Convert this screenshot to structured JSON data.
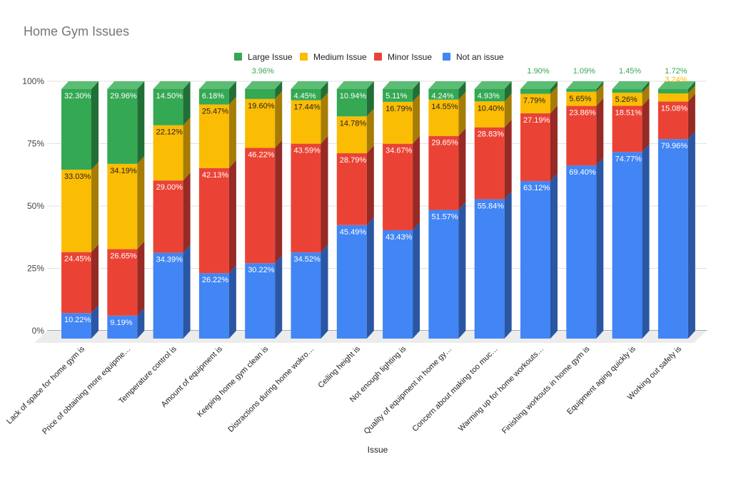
{
  "chart_data": {
    "type": "bar",
    "stacked": true,
    "percent_stacked": true,
    "three_d": true,
    "title": "Home Gym Issues",
    "xlabel": "Issue",
    "ylabel": "",
    "ylim": [
      0,
      100
    ],
    "yticks": [
      "0%",
      "25%",
      "50%",
      "75%",
      "100%"
    ],
    "grid": true,
    "legend_position": "top",
    "categories": [
      "Lack of space for home gym is",
      "Price of obtaining more equipme…",
      "Temperature control is",
      "Amount of equipment is",
      "Keeping home gym clean is",
      "Distractions during home wokro…",
      "Ceiling height is",
      "Not enough lighting is",
      "Quality of equipment in home gy…",
      "Concern about making too muc…",
      "Warming up for home workouts…",
      "Finishing workouts in home gym is",
      "Equipment aging quickly is",
      "Working out safely is"
    ],
    "series": [
      {
        "name": "Not an issue",
        "color": "#4285f4",
        "side_color": "#2a56a4",
        "label_color": "#ffffff",
        "values": [
          10.22,
          9.19,
          34.39,
          26.22,
          30.22,
          34.52,
          45.49,
          43.43,
          51.57,
          55.84,
          63.12,
          69.4,
          74.77,
          79.96
        ],
        "labels": [
          "10.22%",
          "9.19%",
          "34.39%",
          "26.22%",
          "30.22%",
          "34.52%",
          "45.49%",
          "43.43%",
          "51.57%",
          "55.84%",
          "63.12%",
          "69.40%",
          "74.77%",
          "79.96%"
        ]
      },
      {
        "name": "Minor Issue",
        "color": "#ea4335",
        "side_color": "#962a25",
        "label_color": "#ffffff",
        "values": [
          24.45,
          26.65,
          29.0,
          42.13,
          46.22,
          43.59,
          28.79,
          34.67,
          29.65,
          28.83,
          27.19,
          23.86,
          18.51,
          15.08
        ],
        "labels": [
          "24.45%",
          "26.65%",
          "29.00%",
          "42.13%",
          "46.22%",
          "43.59%",
          "28.79%",
          "34.67%",
          "29.65%",
          "28.83%",
          "27.19%",
          "23.86%",
          "18.51%",
          "15.08%"
        ]
      },
      {
        "name": "Medium Issue",
        "color": "#fbbc04",
        "side_color": "#a57c05",
        "label_color": "#222222",
        "values": [
          33.03,
          34.19,
          22.12,
          25.47,
          19.6,
          17.44,
          14.78,
          16.79,
          14.55,
          10.4,
          7.79,
          5.65,
          5.26,
          3.24
        ],
        "labels": [
          "33.03%",
          "34.19%",
          "22.12%",
          "25.47%",
          "19.60%",
          "17.44%",
          "14.78%",
          "16.79%",
          "14.55%",
          "10.40%",
          "7.79%",
          "5.65%",
          "5.26%",
          "3.24%"
        ]
      },
      {
        "name": "Large Issue",
        "color": "#34a853",
        "side_color": "#216e36",
        "label_color": "#ffffff",
        "values": [
          32.3,
          29.96,
          14.5,
          6.18,
          3.96,
          4.45,
          10.94,
          5.11,
          4.24,
          4.93,
          1.9,
          1.09,
          1.45,
          1.72
        ],
        "labels": [
          "32.30%",
          "29.96%",
          "14.50%",
          "6.18%",
          "3.96%",
          "4.45%",
          "10.94%",
          "5.11%",
          "4.24%",
          "4.93%",
          "1.90%",
          "1.09%",
          "1.45%",
          "1.72%"
        ]
      }
    ],
    "legend_order": [
      "Large Issue",
      "Medium Issue",
      "Minor Issue",
      "Not an issue"
    ]
  },
  "colors": {
    "background": "#ffffff",
    "grid": "#e0e0e0",
    "floor": "#ececec",
    "axis_line": "#555555"
  }
}
